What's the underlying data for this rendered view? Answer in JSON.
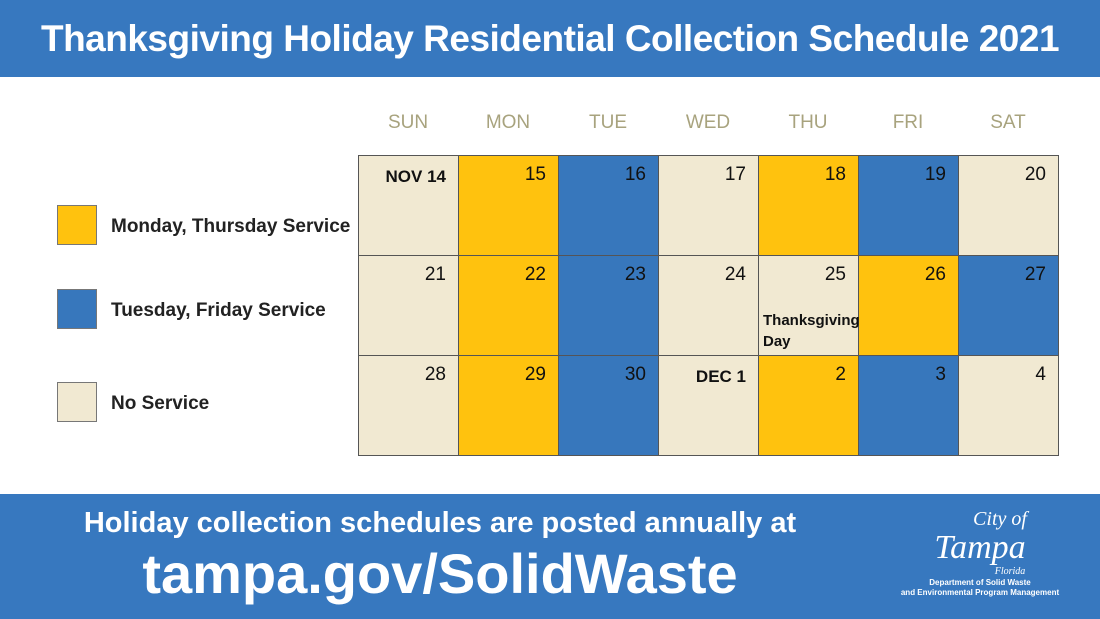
{
  "title": "Thanksgiving Holiday Residential Collection Schedule 2021",
  "colors": {
    "monthu": "#FFC20E",
    "tuefri": "#3777BC",
    "none": "#F1E9D2"
  },
  "days": [
    "SUN",
    "MON",
    "TUE",
    "WED",
    "THU",
    "FRI",
    "SAT"
  ],
  "legend": [
    {
      "label": "Monday, Thursday Service",
      "type": "monthu"
    },
    {
      "label": "Tuesday, Friday Service",
      "type": "tuefri"
    },
    {
      "label": "No Service",
      "type": "none"
    }
  ],
  "calendar": [
    {
      "label": "NOV 14",
      "type": "none"
    },
    {
      "label": "15",
      "type": "monthu"
    },
    {
      "label": "16",
      "type": "tuefri"
    },
    {
      "label": "17",
      "type": "none"
    },
    {
      "label": "18",
      "type": "monthu"
    },
    {
      "label": "19",
      "type": "tuefri"
    },
    {
      "label": "20",
      "type": "none"
    },
    {
      "label": "21",
      "type": "none"
    },
    {
      "label": "22",
      "type": "monthu"
    },
    {
      "label": "23",
      "type": "tuefri"
    },
    {
      "label": "24",
      "type": "none"
    },
    {
      "label": "25",
      "type": "none",
      "note": "Thanksgiving Day"
    },
    {
      "label": "26",
      "type": "monthu"
    },
    {
      "label": "27",
      "type": "tuefri"
    },
    {
      "label": "28",
      "type": "none"
    },
    {
      "label": "29",
      "type": "monthu"
    },
    {
      "label": "30",
      "type": "tuefri"
    },
    {
      "label": "DEC 1",
      "type": "none"
    },
    {
      "label": "2",
      "type": "monthu"
    },
    {
      "label": "3",
      "type": "tuefri"
    },
    {
      "label": "4",
      "type": "none"
    }
  ],
  "footer": {
    "line1": "Holiday collection schedules are posted annually at",
    "line2": "tampa.gov/SolidWaste"
  },
  "logo": {
    "city_of": "City of",
    "tampa": "Tampa",
    "florida": "Florida",
    "dept1": "Department of Solid Waste",
    "dept2": "and Environmental Program Management"
  }
}
